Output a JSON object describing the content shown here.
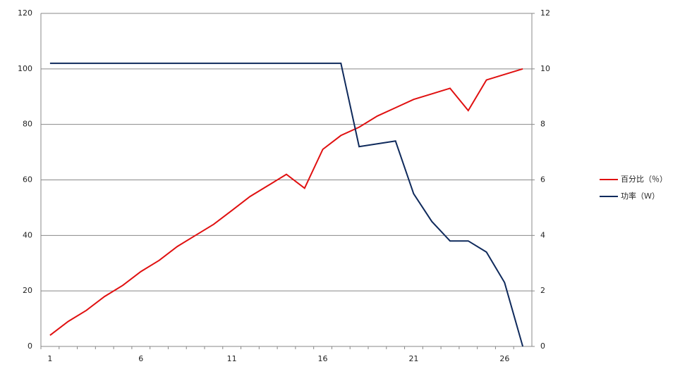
{
  "chart_data": {
    "type": "line",
    "categories": [
      "1",
      null,
      null,
      null,
      null,
      "6",
      null,
      null,
      null,
      null,
      "11",
      null,
      null,
      null,
      null,
      "16",
      null,
      null,
      null,
      null,
      "21",
      null,
      null,
      null,
      null,
      "26",
      null
    ],
    "series": [
      {
        "name": "百分比（％）",
        "color": "#e01010",
        "axis": "y",
        "values": [
          4,
          9,
          13,
          18,
          22,
          27,
          31,
          36,
          40,
          44,
          49,
          54,
          58,
          62,
          57,
          71,
          76,
          79,
          83,
          86,
          89,
          91,
          93,
          85,
          96,
          98,
          100
        ]
      },
      {
        "name": "功率（Ｗ）",
        "color": "#0f2a5c",
        "axis": "y2",
        "values": [
          10.2,
          10.2,
          10.2,
          10.2,
          10.2,
          10.2,
          10.2,
          10.2,
          10.2,
          10.2,
          10.2,
          10.2,
          10.2,
          10.2,
          10.2,
          10.2,
          10.2,
          7.2,
          7.3,
          7.4,
          5.5,
          4.5,
          3.8,
          3.8,
          3.4,
          2.3,
          0
        ]
      }
    ],
    "ylim": [
      0,
      120
    ],
    "yticks": [
      0,
      20,
      40,
      60,
      80,
      100,
      120
    ],
    "y2lim": [
      0,
      12
    ],
    "y2ticks": [
      0,
      2,
      4,
      6,
      8,
      10,
      12
    ],
    "grid": true,
    "legend": "right"
  }
}
